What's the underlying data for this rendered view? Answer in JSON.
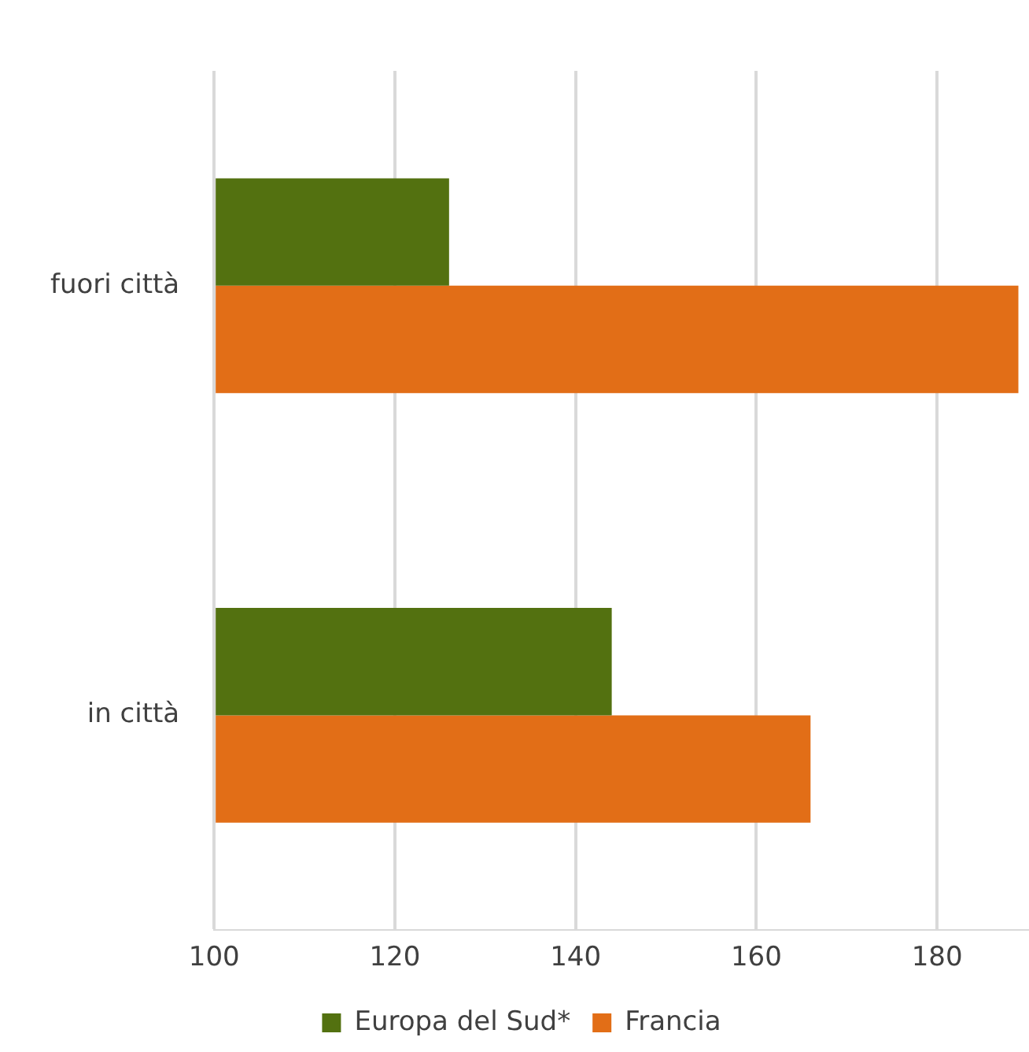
{
  "chart_data": {
    "type": "bar",
    "orientation": "horizontal",
    "categories": [
      "fuori città",
      "in città"
    ],
    "series": [
      {
        "name": "Europa del Sud*",
        "color": "#537110",
        "values": [
          126,
          144
        ]
      },
      {
        "name": "Francia",
        "color": "#e26e17",
        "values": [
          189,
          166
        ]
      }
    ],
    "xlim": [
      100,
      190
    ],
    "xticks": [
      100,
      120,
      140,
      160,
      180
    ],
    "grid": "x",
    "legend": "bottom"
  }
}
